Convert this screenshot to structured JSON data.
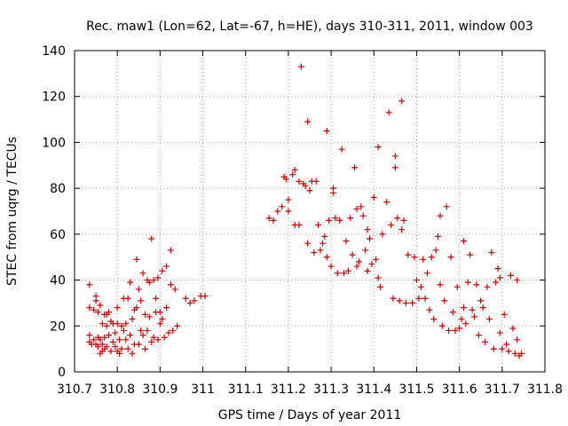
{
  "chart_data": {
    "type": "scatter",
    "title": "Rec. maw1 (Lon=62, Lat=-67, h=HE), days 310-311, 2011, window 003",
    "xlabel": "GPS time / Days of year 2011",
    "ylabel": "STEC from uqrg / TECUs",
    "xlim": [
      310.7,
      311.8
    ],
    "ylim": [
      0,
      140
    ],
    "xticks": [
      310.7,
      310.8,
      310.9,
      311,
      311.1,
      311.2,
      311.3,
      311.4,
      311.5,
      311.6,
      311.7,
      311.8
    ],
    "xtick_labels": [
      "310.7",
      "310.8",
      "310.9",
      "311",
      "311.1",
      "311.2",
      "311.3",
      "311.4",
      "311.5",
      "311.6",
      "311.7",
      "311.8"
    ],
    "yticks": [
      0,
      20,
      40,
      60,
      80,
      100,
      120,
      140
    ],
    "ytick_labels": [
      "0",
      "20",
      "40",
      "60",
      "80",
      "100",
      "120",
      "140"
    ],
    "grid": true,
    "legend": "none",
    "marker": "+",
    "color": "#cc0000",
    "points": [
      [
        310.735,
        38
      ],
      [
        310.735,
        28
      ],
      [
        310.735,
        16
      ],
      [
        310.735,
        13
      ],
      [
        310.74,
        12
      ],
      [
        310.745,
        14
      ],
      [
        310.745,
        27
      ],
      [
        310.75,
        33
      ],
      [
        310.75,
        31
      ],
      [
        310.75,
        12
      ],
      [
        310.755,
        26
      ],
      [
        310.755,
        15
      ],
      [
        310.755,
        11
      ],
      [
        310.76,
        29
      ],
      [
        310.76,
        14
      ],
      [
        310.76,
        8
      ],
      [
        310.765,
        21
      ],
      [
        310.765,
        12
      ],
      [
        310.765,
        9
      ],
      [
        310.77,
        25
      ],
      [
        310.77,
        15
      ],
      [
        310.77,
        10
      ],
      [
        310.775,
        25
      ],
      [
        310.775,
        20
      ],
      [
        310.775,
        11
      ],
      [
        310.78,
        26
      ],
      [
        310.78,
        16
      ],
      [
        310.785,
        22
      ],
      [
        310.785,
        9
      ],
      [
        310.79,
        13
      ],
      [
        310.79,
        21
      ],
      [
        310.795,
        17
      ],
      [
        310.795,
        11
      ],
      [
        310.8,
        28
      ],
      [
        310.8,
        21
      ],
      [
        310.8,
        9
      ],
      [
        310.805,
        14
      ],
      [
        310.805,
        8
      ],
      [
        310.81,
        20
      ],
      [
        310.81,
        10
      ],
      [
        310.815,
        32
      ],
      [
        310.815,
        18
      ],
      [
        310.82,
        21
      ],
      [
        310.82,
        14
      ],
      [
        310.825,
        32
      ],
      [
        310.825,
        10
      ],
      [
        310.83,
        16
      ],
      [
        310.83,
        39
      ],
      [
        310.835,
        23
      ],
      [
        310.835,
        8
      ],
      [
        310.84,
        27
      ],
      [
        310.84,
        12
      ],
      [
        310.845,
        49
      ],
      [
        310.845,
        28
      ],
      [
        310.85,
        12
      ],
      [
        310.85,
        36
      ],
      [
        310.855,
        31
      ],
      [
        310.855,
        18
      ],
      [
        310.86,
        16
      ],
      [
        310.86,
        43
      ],
      [
        310.865,
        25
      ],
      [
        310.865,
        10
      ],
      [
        310.87,
        40
      ],
      [
        310.87,
        18
      ],
      [
        310.875,
        24
      ],
      [
        310.875,
        39
      ],
      [
        310.88,
        58
      ],
      [
        310.88,
        13
      ],
      [
        310.885,
        15
      ],
      [
        310.885,
        40
      ],
      [
        310.89,
        26
      ],
      [
        310.89,
        32
      ],
      [
        310.895,
        41
      ],
      [
        310.895,
        14
      ],
      [
        310.9,
        21
      ],
      [
        310.9,
        26
      ],
      [
        310.905,
        44
      ],
      [
        310.905,
        23
      ],
      [
        310.91,
        15
      ],
      [
        310.915,
        46
      ],
      [
        310.915,
        28
      ],
      [
        310.92,
        17
      ],
      [
        310.925,
        38
      ],
      [
        310.925,
        53
      ],
      [
        310.93,
        18
      ],
      [
        310.935,
        36
      ],
      [
        310.94,
        20
      ],
      [
        310.96,
        32
      ],
      [
        310.97,
        30
      ],
      [
        310.98,
        31
      ],
      [
        310.995,
        33
      ],
      [
        311.005,
        33
      ],
      [
        311.155,
        67
      ],
      [
        311.165,
        66
      ],
      [
        311.175,
        70
      ],
      [
        311.185,
        72
      ],
      [
        311.19,
        85
      ],
      [
        311.195,
        84
      ],
      [
        311.2,
        75
      ],
      [
        311.2,
        70
      ],
      [
        311.21,
        86
      ],
      [
        311.215,
        88
      ],
      [
        311.215,
        64
      ],
      [
        311.225,
        83
      ],
      [
        311.225,
        64
      ],
      [
        311.23,
        133
      ],
      [
        311.235,
        82
      ],
      [
        311.24,
        81
      ],
      [
        311.245,
        109
      ],
      [
        311.245,
        56
      ],
      [
        311.25,
        79
      ],
      [
        311.255,
        83
      ],
      [
        311.26,
        52
      ],
      [
        311.265,
        83
      ],
      [
        311.27,
        64
      ],
      [
        311.275,
        53
      ],
      [
        311.28,
        56
      ],
      [
        311.285,
        59
      ],
      [
        311.29,
        105
      ],
      [
        311.29,
        50
      ],
      [
        311.295,
        66
      ],
      [
        311.3,
        46
      ],
      [
        311.305,
        80
      ],
      [
        311.305,
        78
      ],
      [
        311.31,
        67
      ],
      [
        311.315,
        43
      ],
      [
        311.32,
        66
      ],
      [
        311.325,
        97
      ],
      [
        311.33,
        43
      ],
      [
        311.335,
        57
      ],
      [
        311.34,
        44
      ],
      [
        311.345,
        67
      ],
      [
        311.35,
        51
      ],
      [
        311.355,
        89
      ],
      [
        311.36,
        71
      ],
      [
        311.36,
        46
      ],
      [
        311.365,
        48
      ],
      [
        311.37,
        72
      ],
      [
        311.375,
        68
      ],
      [
        311.38,
        53
      ],
      [
        311.385,
        44
      ],
      [
        311.385,
        62
      ],
      [
        311.39,
        58
      ],
      [
        311.395,
        47
      ],
      [
        311.4,
        76
      ],
      [
        311.405,
        49
      ],
      [
        311.41,
        98
      ],
      [
        311.41,
        41
      ],
      [
        311.415,
        37
      ],
      [
        311.42,
        60
      ],
      [
        311.43,
        74
      ],
      [
        311.435,
        113
      ],
      [
        311.44,
        64
      ],
      [
        311.445,
        32
      ],
      [
        311.45,
        89
      ],
      [
        311.45,
        94
      ],
      [
        311.455,
        67
      ],
      [
        311.46,
        31
      ],
      [
        311.465,
        118
      ],
      [
        311.465,
        62
      ],
      [
        311.47,
        66
      ],
      [
        311.475,
        30
      ],
      [
        311.48,
        51
      ],
      [
        311.49,
        30
      ],
      [
        311.495,
        50
      ],
      [
        311.5,
        40
      ],
      [
        311.505,
        32
      ],
      [
        311.51,
        37
      ],
      [
        311.515,
        49
      ],
      [
        311.52,
        32
      ],
      [
        311.525,
        43
      ],
      [
        311.53,
        27
      ],
      [
        311.535,
        50
      ],
      [
        311.54,
        23
      ],
      [
        311.545,
        53
      ],
      [
        311.55,
        59
      ],
      [
        311.555,
        68
      ],
      [
        311.555,
        38
      ],
      [
        311.56,
        20
      ],
      [
        311.565,
        31
      ],
      [
        311.57,
        72
      ],
      [
        311.575,
        18
      ],
      [
        311.58,
        50
      ],
      [
        311.585,
        26
      ],
      [
        311.59,
        18
      ],
      [
        311.595,
        37
      ],
      [
        311.6,
        19
      ],
      [
        311.605,
        23
      ],
      [
        311.61,
        57
      ],
      [
        311.61,
        28
      ],
      [
        311.615,
        21
      ],
      [
        311.62,
        39
      ],
      [
        311.625,
        51
      ],
      [
        311.63,
        27
      ],
      [
        311.635,
        24
      ],
      [
        311.64,
        38
      ],
      [
        311.645,
        16
      ],
      [
        311.65,
        31
      ],
      [
        311.655,
        28
      ],
      [
        311.66,
        13
      ],
      [
        311.665,
        37
      ],
      [
        311.67,
        23
      ],
      [
        311.675,
        52
      ],
      [
        311.68,
        10
      ],
      [
        311.685,
        39
      ],
      [
        311.69,
        45
      ],
      [
        311.695,
        17
      ],
      [
        311.695,
        41
      ],
      [
        311.7,
        10
      ],
      [
        311.705,
        25
      ],
      [
        311.71,
        12
      ],
      [
        311.715,
        9
      ],
      [
        311.72,
        42
      ],
      [
        311.725,
        19
      ],
      [
        311.73,
        8
      ],
      [
        311.735,
        14
      ],
      [
        311.735,
        40
      ],
      [
        311.74,
        7
      ],
      [
        311.745,
        8
      ]
    ]
  }
}
